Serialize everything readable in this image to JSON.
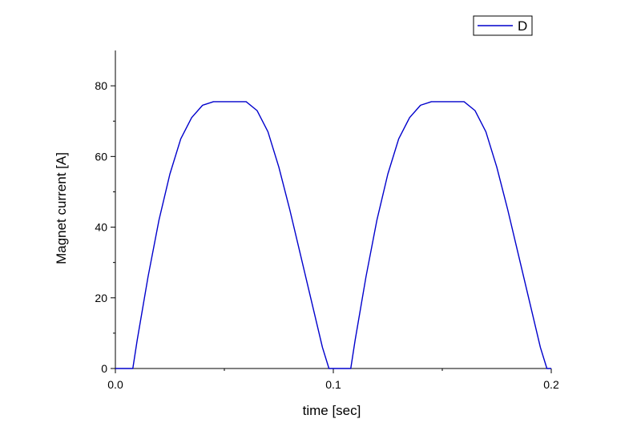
{
  "chart_data": {
    "type": "line",
    "title": "",
    "xlabel": "time  [sec]",
    "ylabel": "Magnet current   [A]",
    "xlim": [
      0.0,
      0.2
    ],
    "ylim": [
      0,
      90
    ],
    "x_ticks": [
      {
        "value": 0.0,
        "label": "0.0"
      },
      {
        "value": 0.1,
        "label": "0.1"
      },
      {
        "value": 0.2,
        "label": "0.2"
      }
    ],
    "y_ticks": [
      {
        "value": 0,
        "label": "0"
      },
      {
        "value": 20,
        "label": "20"
      },
      {
        "value": 40,
        "label": "40"
      },
      {
        "value": 60,
        "label": "60"
      },
      {
        "value": 80,
        "label": "80"
      }
    ],
    "grid": false,
    "legend_position": "top-right",
    "series": [
      {
        "name": "D",
        "color": "#0000cc",
        "x": [
          0.0,
          0.008,
          0.01,
          0.015,
          0.02,
          0.025,
          0.03,
          0.035,
          0.04,
          0.045,
          0.05,
          0.055,
          0.06,
          0.065,
          0.07,
          0.075,
          0.08,
          0.085,
          0.09,
          0.095,
          0.098,
          0.1,
          0.108,
          0.11,
          0.115,
          0.12,
          0.125,
          0.13,
          0.135,
          0.14,
          0.145,
          0.15,
          0.155,
          0.16,
          0.165,
          0.17,
          0.175,
          0.18,
          0.185,
          0.19,
          0.195,
          0.198,
          0.2
        ],
        "y": [
          0,
          0,
          8,
          26,
          42,
          55,
          65,
          71,
          74.5,
          75.5,
          75.5,
          75.5,
          75.5,
          73,
          67,
          57,
          45,
          32,
          19,
          6,
          0,
          0,
          0,
          8,
          26,
          42,
          55,
          65,
          71,
          74.5,
          75.5,
          75.5,
          75.5,
          75.5,
          73,
          67,
          57,
          45,
          32,
          19,
          6,
          0,
          0
        ]
      }
    ]
  }
}
